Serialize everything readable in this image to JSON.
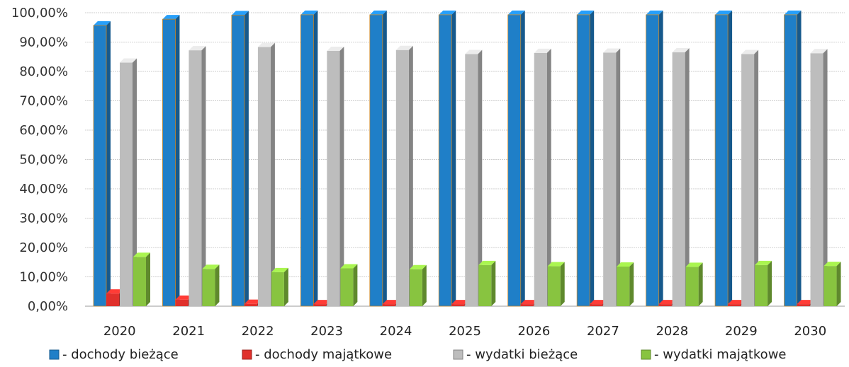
{
  "chart_data": {
    "type": "bar",
    "categories": [
      "2020",
      "2021",
      "2022",
      "2023",
      "2024",
      "2025",
      "2026",
      "2027",
      "2028",
      "2029",
      "2030"
    ],
    "ylim": [
      0,
      100
    ],
    "yticks": [
      "0,00%",
      "10,00%",
      "20,00%",
      "30,00%",
      "40,00%",
      "50,00%",
      "60,00%",
      "70,00%",
      "80,00%",
      "90,00%",
      "100,00%"
    ],
    "title": "",
    "xlabel": "",
    "ylabel": "",
    "grid": true,
    "legend_position": "bottom",
    "series": [
      {
        "name": "- dochody bieżące",
        "color": "#1f7fc8",
        "values": [
          95.7,
          97.8,
          99.2,
          99.3,
          99.3,
          99.3,
          99.3,
          99.3,
          99.3,
          99.3,
          99.3
        ]
      },
      {
        "name": "- dochody majątkowe",
        "color": "#e0302b",
        "values": [
          4.3,
          2.2,
          0.8,
          0.7,
          0.7,
          0.7,
          0.7,
          0.7,
          0.7,
          0.7,
          0.7
        ]
      },
      {
        "name": "- wydatki bieżące",
        "color": "#bdbdbd",
        "values": [
          83.0,
          87.2,
          88.3,
          87.0,
          87.3,
          85.9,
          86.3,
          86.4,
          86.5,
          85.9,
          86.2
        ]
      },
      {
        "name": "- wydatki majątkowe",
        "color": "#88c440",
        "values": [
          16.8,
          12.7,
          11.6,
          12.9,
          12.6,
          14.0,
          13.6,
          13.5,
          13.4,
          14.0,
          13.7
        ]
      }
    ]
  }
}
